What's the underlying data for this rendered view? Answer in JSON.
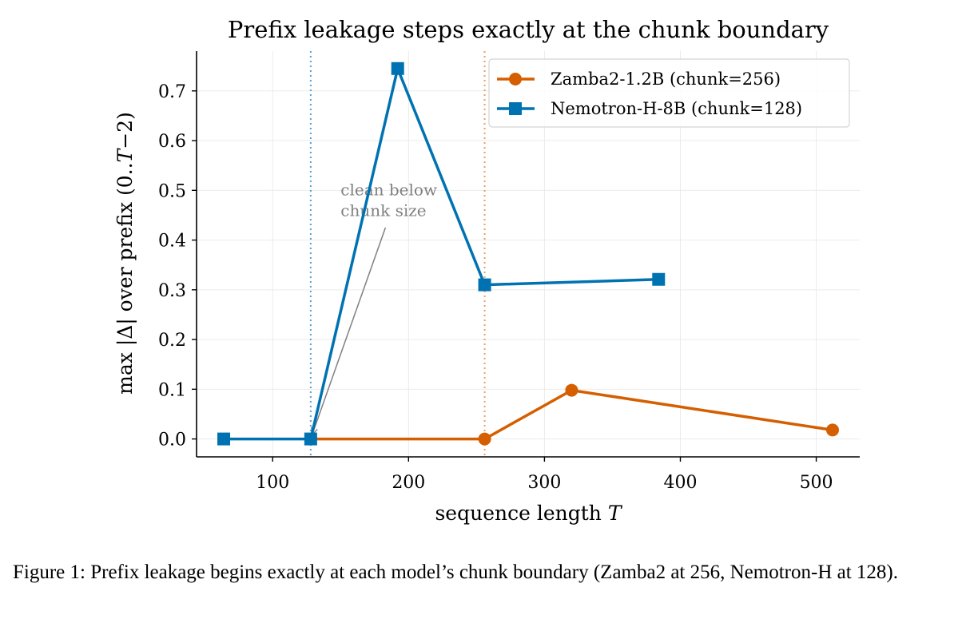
{
  "chart_data": {
    "type": "line",
    "title": "Prefix leakage steps exactly at the chunk boundary",
    "xlabel": "sequence length T",
    "ylabel": "max |Δ| over prefix (0..T−2)",
    "xlim": [
      44,
      532
    ],
    "ylim": [
      -0.036,
      0.78
    ],
    "xticks": [
      100,
      200,
      300,
      400,
      500
    ],
    "yticks": [
      0.0,
      0.1,
      0.2,
      0.3,
      0.4,
      0.5,
      0.6,
      0.7
    ],
    "ytick_labels": [
      "0.0",
      "0.1",
      "0.2",
      "0.3",
      "0.4",
      "0.5",
      "0.6",
      "0.7"
    ],
    "grid": true,
    "legend_position": "top-right",
    "series": [
      {
        "name": "Zamba2-1.2B (chunk=256)",
        "color": "#d55e00",
        "marker": "circle",
        "x": [
          128,
          256,
          320,
          512
        ],
        "y": [
          0.0,
          0.0,
          0.098,
          0.018
        ]
      },
      {
        "name": "Nemotron-H-8B (chunk=128)",
        "color": "#0072b2",
        "marker": "square",
        "x": [
          64,
          128,
          192,
          256,
          384
        ],
        "y": [
          0.0,
          0.0,
          0.745,
          0.31,
          0.321
        ]
      }
    ],
    "vlines": [
      {
        "x": 128,
        "color": "#56a0d3",
        "style": "dotted"
      },
      {
        "x": 256,
        "color": "#e6a060",
        "style": "dotted"
      }
    ],
    "annotation": {
      "lines": [
        "clean below",
        "chunk size"
      ],
      "text_x": 150,
      "text_y": 0.49,
      "arrow_from": [
        183,
        0.425
      ],
      "arrow_to": [
        128,
        0.0
      ],
      "color": "#808080"
    }
  },
  "caption": "Figure 1: Prefix leakage begins exactly at each model’s chunk boundary (Zamba2 at 256, Nemotron-H at 128)."
}
